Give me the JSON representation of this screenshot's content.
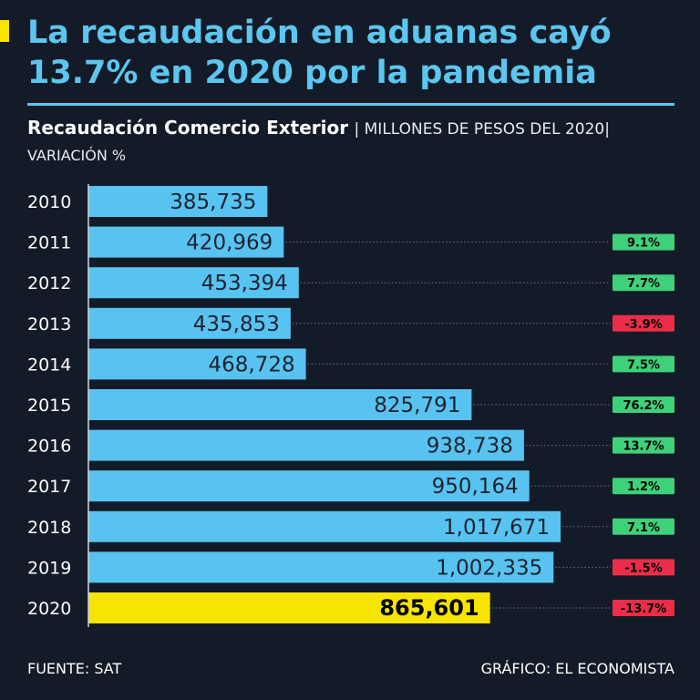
{
  "headline": {
    "line1": "La recaudación en aduanas cayó",
    "line2": "13.7% en 2020 por la pandemia"
  },
  "subtitle": {
    "main": "Recaudación Comercio Exterior",
    "units": "| MILLONES DE PESOS DEL 2020|",
    "variation": "VARIACIÓN %"
  },
  "footer": {
    "source": "FUENTE: SAT",
    "credit": "GRÁFICO: EL ECONOMISTA"
  },
  "colors": {
    "bar": "#58c3f0",
    "highlight_bar": "#f7e400",
    "positive": "#3fd07a",
    "negative": "#ec2d4a",
    "title": "#5cc6ef"
  },
  "chart_data": {
    "type": "bar",
    "orientation": "horizontal",
    "title": "Recaudación Comercio Exterior",
    "units": "MILLONES DE PESOS DEL 2020",
    "categories": [
      "2010",
      "2011",
      "2012",
      "2013",
      "2014",
      "2015",
      "2016",
      "2017",
      "2018",
      "2019",
      "2020"
    ],
    "values": [
      385735,
      420969,
      453394,
      435853,
      468728,
      825791,
      938738,
      950164,
      1017671,
      1002335,
      865601
    ],
    "value_labels": [
      "385,735",
      "420,969",
      "453,394",
      "435,853",
      "468,728",
      "825,791",
      "938,738",
      "950,164",
      "1,017,671",
      "1,002,335",
      "865,601"
    ],
    "variation_labels": [
      "",
      "9.1%",
      "7.7%",
      "-3.9%",
      "7.5%",
      "76.2%",
      "13.7%",
      "1.2%",
      "7.1%",
      "-1.5%",
      "-13.7%"
    ],
    "variation": [
      null,
      9.1,
      7.7,
      -3.9,
      7.5,
      76.2,
      13.7,
      1.2,
      7.1,
      -1.5,
      -13.7
    ],
    "highlight": "2020",
    "xlim": [
      0,
      1100000
    ]
  }
}
